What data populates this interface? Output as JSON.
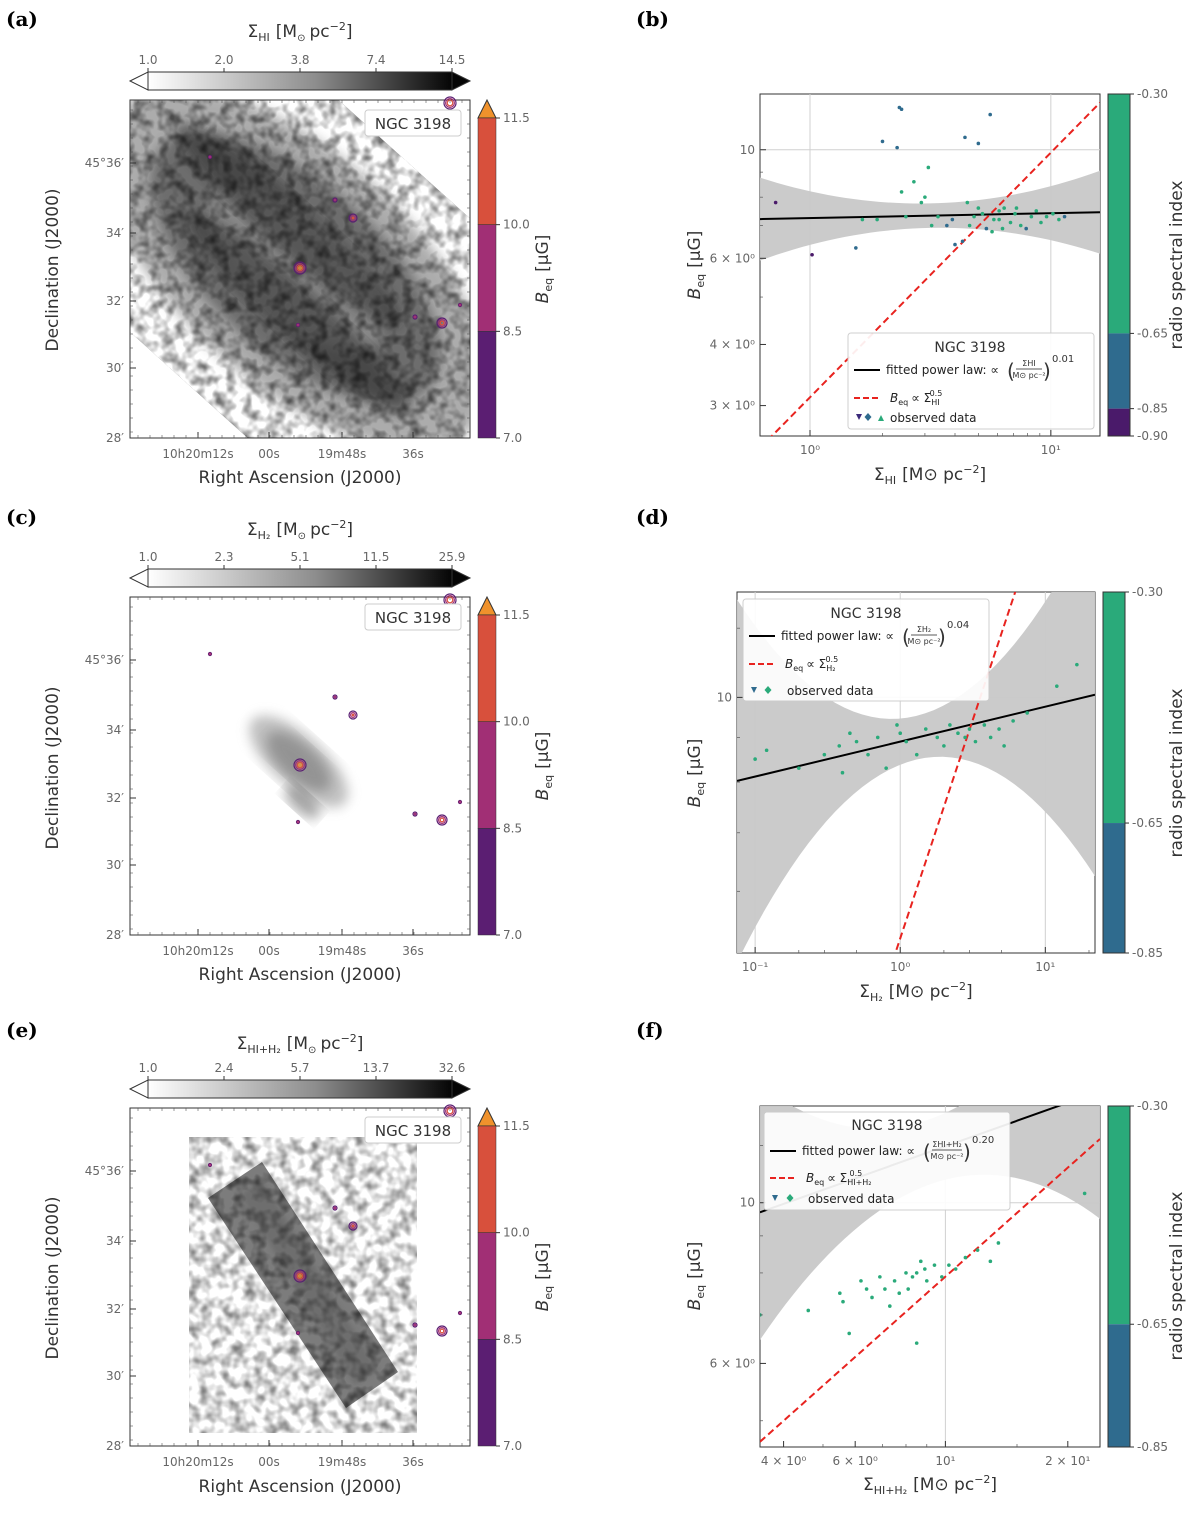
{
  "panels": {
    "a": {
      "letter": "(a)",
      "cbar_title_base": "Σ",
      "cbar_title_sub": "HI",
      "cbar_title_unit": "[M",
      "cbar_title_unit2": "pc",
      "cbar_title_exp": "−2",
      "cbar_title_close": "]",
      "cbar_ticks": [
        "1.0",
        "2.0",
        "3.8",
        "7.4",
        "14.5"
      ],
      "galaxy": "NGC 3198",
      "beq_ticks": [
        "11.5",
        "10.0",
        "8.5",
        "7.0"
      ],
      "beq_label": "B",
      "beq_sub": "eq",
      "beq_unit": "[μG]",
      "dec_ticks": [
        "45°36′",
        "34′",
        "32′",
        "30′",
        "28′"
      ],
      "ra_ticks": [
        "10h20m12s",
        "00s",
        "19m48s",
        "36s"
      ],
      "ylabel": "Declination (J2000)",
      "xlabel": "Right Ascension (J2000)"
    },
    "b": {
      "letter": "(b)",
      "cbar_ticks": [
        "-0.30",
        "-0.65",
        "-0.85",
        "-0.90"
      ],
      "cbar_label": "radio spectral index",
      "yticks": [
        "10",
        "6 × 10⁰",
        "4 × 10⁰",
        "3 × 10⁰"
      ],
      "xticks": [
        "10⁰",
        "10¹"
      ],
      "legend_title": "NGC 3198",
      "legend_fit": "fitted power law: ∝",
      "legend_frac_top": "ΣHI",
      "legend_frac_bot": "M⊙ pc⁻²",
      "legend_exp": "0.01",
      "legend_beq": "B",
      "legend_beq_rel": "∝ Σ",
      "legend_beq_sub": "HI",
      "legend_beq_exp": "0.5",
      "legend_obs": "observed data",
      "xlabel_base": "Σ",
      "xlabel_sub": "HI",
      "xlabel_unit": "[M⊙ pc",
      "xlabel_exp": "−2",
      "xlabel_close": "]",
      "ylabel_base": "B",
      "ylabel_sub": "eq",
      "ylabel_unit": "[μG]"
    },
    "c": {
      "letter": "(c)",
      "cbar_title_sub": "H₂",
      "cbar_ticks": [
        "1.0",
        "2.3",
        "5.1",
        "11.5",
        "25.9"
      ],
      "galaxy": "NGC 3198",
      "beq_ticks": [
        "11.5",
        "10.0",
        "8.5",
        "7.0"
      ],
      "dec_ticks": [
        "45°36′",
        "34′",
        "32′",
        "30′",
        "28′"
      ],
      "ra_ticks": [
        "10h20m12s",
        "00s",
        "19m48s",
        "36s"
      ],
      "ylabel": "Declination (J2000)",
      "xlabel": "Right Ascension (J2000)"
    },
    "d": {
      "letter": "(d)",
      "cbar_ticks": [
        "-0.30",
        "-0.65",
        "-0.85"
      ],
      "cbar_label": "radio spectral index",
      "yticks": [
        "10"
      ],
      "xticks": [
        "10⁻¹",
        "10⁰",
        "10¹"
      ],
      "legend_title": "NGC 3198",
      "legend_fit": "fitted power law: ∝",
      "legend_frac_top": "ΣH₂",
      "legend_frac_bot": "M⊙ pc⁻²",
      "legend_exp": "0.04",
      "legend_beq_sub": "H₂",
      "legend_beq_exp": "0.5",
      "legend_obs": "observed data",
      "xlabel_sub": "H₂"
    },
    "e": {
      "letter": "(e)",
      "cbar_title_sub": "HI+H₂",
      "cbar_ticks": [
        "1.0",
        "2.4",
        "5.7",
        "13.7",
        "32.6"
      ],
      "galaxy": "NGC 3198",
      "beq_ticks": [
        "11.5",
        "10.0",
        "8.5",
        "7.0"
      ],
      "dec_ticks": [
        "45°36′",
        "34′",
        "32′",
        "30′",
        "28′"
      ],
      "ra_ticks": [
        "10h20m12s",
        "00s",
        "19m48s",
        "36s"
      ],
      "ylabel": "Declination (J2000)",
      "xlabel": "Right Ascension (J2000)"
    },
    "f": {
      "letter": "(f)",
      "cbar_ticks": [
        "-0.30",
        "-0.65",
        "-0.85"
      ],
      "cbar_label": "radio spectral index",
      "yticks": [
        "10",
        "6 × 10⁰"
      ],
      "xticks": [
        "4 × 10⁰",
        "6 × 10⁰",
        "10¹",
        "2 × 10¹"
      ],
      "legend_title": "NGC 3198",
      "legend_fit": "fitted power law: ∝",
      "legend_frac_top": "ΣHI+H₂",
      "legend_frac_bot": "M⊙ pc⁻²",
      "legend_exp": "0.20",
      "legend_beq_sub": "HI+H₂",
      "legend_beq_exp": "0.5",
      "legend_obs": "observed data",
      "xlabel_sub": "HI+H₂"
    }
  },
  "colors": {
    "fit_line": "#000000",
    "red_dashed": "#e8231f",
    "band": "#c8c8c8",
    "cbar_green": "#2aaa7a",
    "cbar_blue": "#2f6b8e",
    "cbar_purple": "#4a1a6a",
    "beq_orange": "#f0922c",
    "beq_red": "#d8503c",
    "beq_magenta": "#a12f75",
    "beq_purple": "#5b1e72"
  },
  "chart_data": [
    {
      "panel": "b",
      "type": "scatter",
      "xscale": "log",
      "yscale": "log",
      "xlim": [
        0.62,
        16
      ],
      "ylim": [
        2.6,
        13
      ],
      "fit_exponent": 0.01,
      "fit_amplitude": 7.25,
      "reference_slope": 0.5,
      "reference_amplitude": 3.12,
      "points": [
        [
          0.72,
          7.8
        ],
        [
          1.02,
          6.1
        ],
        [
          1.55,
          6.3
        ],
        [
          1.65,
          7.2
        ],
        [
          1.9,
          7.2
        ],
        [
          2.0,
          10.4
        ],
        [
          2.35,
          12.2
        ],
        [
          2.4,
          12.1
        ],
        [
          2.3,
          10.1
        ],
        [
          2.4,
          8.2
        ],
        [
          2.5,
          7.3
        ],
        [
          2.9,
          7.8
        ],
        [
          3.1,
          9.2
        ],
        [
          3.4,
          7.3
        ],
        [
          3.7,
          7.0
        ],
        [
          4.0,
          6.4
        ],
        [
          4.3,
          6.5
        ],
        [
          4.4,
          10.6
        ],
        [
          5.0,
          10.3
        ],
        [
          5.6,
          11.8
        ],
        [
          5.2,
          7.4
        ],
        [
          5.4,
          6.9
        ],
        [
          5.7,
          6.8
        ],
        [
          6.1,
          7.2
        ],
        [
          6.4,
          7.6
        ],
        [
          6.8,
          7.1
        ],
        [
          7.1,
          7.4
        ],
        [
          7.5,
          7.0
        ],
        [
          7.9,
          6.9
        ],
        [
          8.3,
          7.3
        ],
        [
          8.7,
          7.5
        ],
        [
          9.1,
          7.1
        ],
        [
          9.6,
          7.3
        ],
        [
          10.2,
          7.4
        ],
        [
          10.8,
          7.2
        ],
        [
          11.4,
          7.3
        ],
        [
          6.1,
          7.5
        ],
        [
          5.8,
          7.2
        ],
        [
          4.8,
          7.3
        ],
        [
          4.6,
          7.0
        ],
        [
          6.3,
          6.9
        ],
        [
          7.2,
          7.6
        ],
        [
          3.9,
          7.2
        ],
        [
          4.5,
          7.8
        ],
        [
          5.0,
          7.6
        ],
        [
          3.2,
          7.0
        ],
        [
          2.7,
          8.6
        ],
        [
          3.0,
          8.0
        ]
      ]
    },
    {
      "panel": "d",
      "type": "scatter",
      "xscale": "log",
      "yscale": "log",
      "xlim": [
        0.075,
        22
      ],
      "ylim": [
        5.1,
        13.2
      ],
      "fit_exponent": 0.04,
      "fit_amplitude": 8.9,
      "reference_slope": 0.5,
      "reference_amplitude": 5.3,
      "points": [
        [
          0.1,
          8.5
        ],
        [
          0.12,
          8.7
        ],
        [
          0.2,
          8.3
        ],
        [
          0.3,
          8.6
        ],
        [
          0.38,
          8.8
        ],
        [
          0.4,
          8.2
        ],
        [
          0.45,
          9.1
        ],
        [
          0.5,
          8.9
        ],
        [
          0.6,
          8.6
        ],
        [
          0.7,
          9.0
        ],
        [
          0.8,
          8.3
        ],
        [
          0.95,
          9.3
        ],
        [
          1.0,
          9.1
        ],
        [
          1.1,
          8.9
        ],
        [
          1.3,
          8.6
        ],
        [
          1.5,
          9.2
        ],
        [
          1.8,
          9.0
        ],
        [
          2.0,
          8.8
        ],
        [
          2.2,
          9.3
        ],
        [
          2.5,
          9.1
        ],
        [
          2.8,
          9.0
        ],
        [
          3.0,
          9.2
        ],
        [
          3.3,
          8.9
        ],
        [
          3.8,
          9.3
        ],
        [
          4.2,
          9.0
        ],
        [
          4.8,
          9.2
        ],
        [
          5.2,
          8.8
        ],
        [
          6.0,
          9.4
        ],
        [
          7.5,
          9.6
        ],
        [
          12.0,
          10.3
        ],
        [
          16.5,
          10.9
        ]
      ]
    },
    {
      "panel": "f",
      "type": "scatter",
      "xscale": "log",
      "yscale": "log",
      "xlim": [
        3.5,
        24
      ],
      "ylim": [
        4.6,
        13.6
      ],
      "fit_exponent": 0.2,
      "fit_amplitude": 7.55,
      "reference_slope": 0.5,
      "reference_amplitude": 2.5,
      "points": [
        [
          3.5,
          7.0
        ],
        [
          4.6,
          7.1
        ],
        [
          5.5,
          7.5
        ],
        [
          5.6,
          7.3
        ],
        [
          5.8,
          6.6
        ],
        [
          6.2,
          7.8
        ],
        [
          6.4,
          7.6
        ],
        [
          6.6,
          7.4
        ],
        [
          6.9,
          7.9
        ],
        [
          7.1,
          7.6
        ],
        [
          7.3,
          7.2
        ],
        [
          7.5,
          7.8
        ],
        [
          7.7,
          7.5
        ],
        [
          8.0,
          8.0
        ],
        [
          8.1,
          7.6
        ],
        [
          8.3,
          7.9
        ],
        [
          8.5,
          8.0
        ],
        [
          8.7,
          8.3
        ],
        [
          8.9,
          8.1
        ],
        [
          8.5,
          6.4
        ],
        [
          9.0,
          7.8
        ],
        [
          9.4,
          8.2
        ],
        [
          9.8,
          7.9
        ],
        [
          10.2,
          8.2
        ],
        [
          10.6,
          8.1
        ],
        [
          11.2,
          8.4
        ],
        [
          12.0,
          8.6
        ],
        [
          12.9,
          8.3
        ],
        [
          13.5,
          8.8
        ],
        [
          22.0,
          10.3
        ]
      ]
    }
  ]
}
